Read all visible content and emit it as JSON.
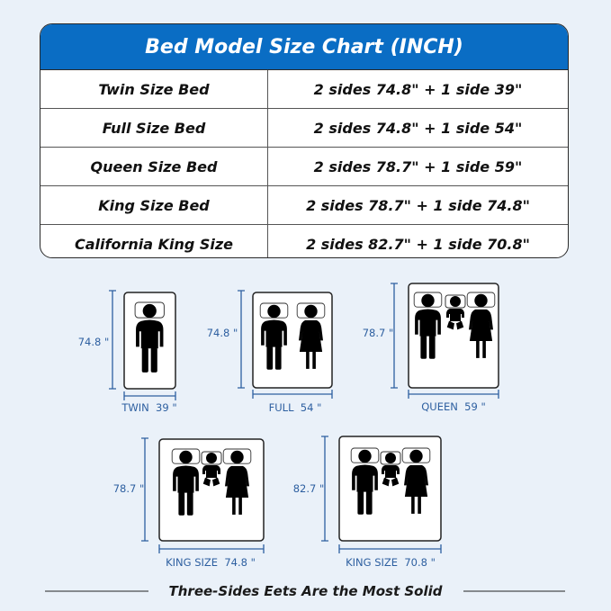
{
  "title": "Bed Model Size Chart (INCH)",
  "rows": [
    {
      "bed": "Twin Size Bed",
      "size": "2 sides 74.8\" + 1 side 39\""
    },
    {
      "bed": "Full Size Bed",
      "size": "2 sides 74.8\" + 1 side 54\""
    },
    {
      "bed": "Queen Size Bed",
      "size": "2 sides 78.7\" + 1 side 59\""
    },
    {
      "bed": "King Size Bed",
      "size": "2 sides 78.7\" + 1 side 74.8\""
    },
    {
      "bed": "California King Size",
      "size": "2 sides 82.7\" + 1 side 70.8\""
    }
  ],
  "beds": [
    {
      "length": "74.8 \"",
      "width": "TWIN  39 \""
    },
    {
      "length": "74.8 \"",
      "width": "FULL  54 \""
    },
    {
      "length": "78.7 \"",
      "width": "QUEEN  59 \""
    },
    {
      "length": "78.7 \"",
      "width": "KING SIZE  74.8 \""
    },
    {
      "length": "82.7 \"",
      "width": "KING SIZE  70.8 \""
    }
  ],
  "footer": "Three-Sides Eets Are the Most Solid",
  "colors": {
    "header": "#0a6dc4",
    "dimension": "#2d5fa0",
    "background": "#eaf1f9"
  }
}
